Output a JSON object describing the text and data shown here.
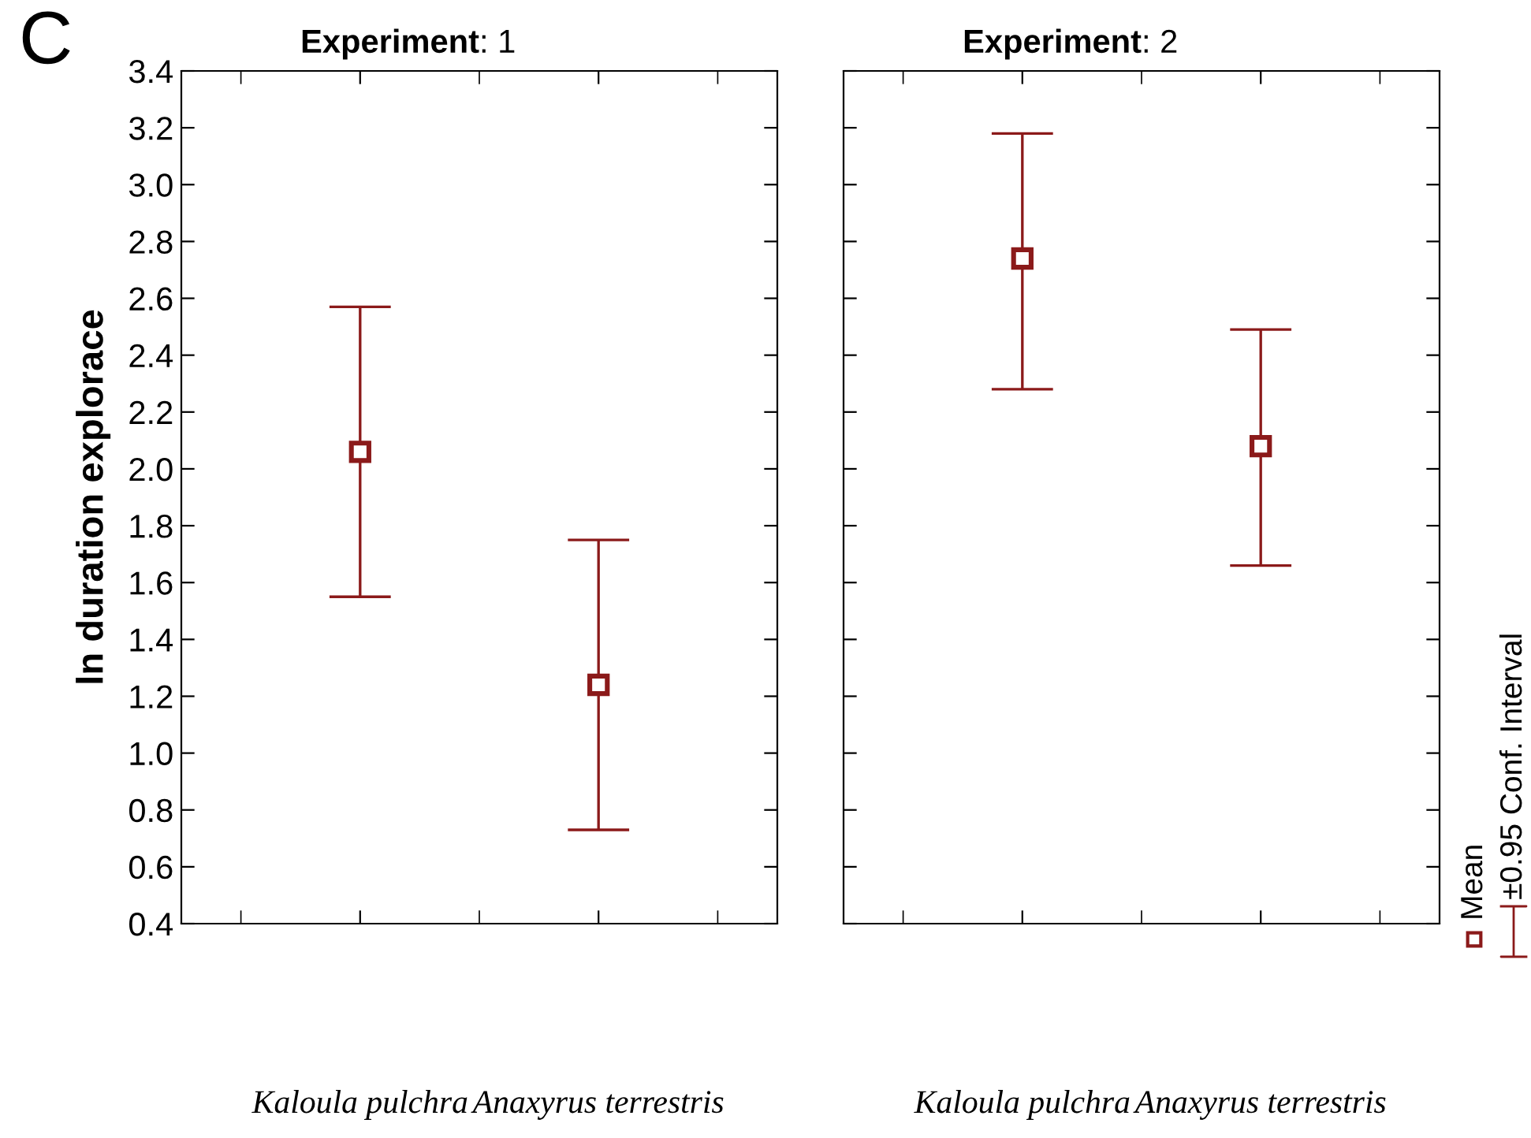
{
  "chart_data": [
    {
      "type": "scatter",
      "title": "Experiment: 1",
      "ylabel": "ln duration explorace",
      "categories": [
        "Kaloula pulchra",
        "Anaxyrus terrestris"
      ],
      "series": [
        {
          "color": "#8b1a1a",
          "values": [
            2.06,
            1.24
          ],
          "errors": [
            [
              1.55,
              2.57
            ],
            [
              0.73,
              1.75
            ]
          ]
        }
      ],
      "ylim": [
        0.4,
        3.4
      ],
      "yticks": [
        0.4,
        0.6,
        0.8,
        {
          "value": 1,
          "label": "1.0"
        },
        1.2,
        1.4,
        1.6,
        1.8,
        {
          "value": 2,
          "label": "2.0"
        },
        2.2,
        2.4,
        2.6,
        2.8,
        {
          "value": 3,
          "label": "3.0"
        },
        3.2,
        3.4
      ],
      "marker": "square",
      "grid": false,
      "annotations": [
        "C"
      ]
    },
    {
      "type": "scatter",
      "title": "Experiment: 2",
      "categories": [
        "Kaloula pulchra",
        "Anaxyrus terrestris"
      ],
      "series": [
        {
          "name": "Mean",
          "color": "#8b1a1a",
          "values": [
            2.74,
            2.08
          ],
          "errors": [
            [
              2.28,
              3.18
            ],
            [
              1.66,
              2.49
            ]
          ]
        }
      ],
      "ylim": [
        0.4,
        3.4
      ],
      "yticks": [
        0.4,
        0.6,
        0.8,
        1.0,
        1.2,
        1.4,
        1.6,
        1.8,
        2.0,
        2.2,
        2.4,
        2.6,
        2.8,
        3.0,
        3.2,
        3.4
      ],
      "marker": "square",
      "grid": false,
      "legend": "right",
      "tick_labels": "x",
      "annotations": [
        "±0.95 Conf. Interval"
      ]
    }
  ]
}
